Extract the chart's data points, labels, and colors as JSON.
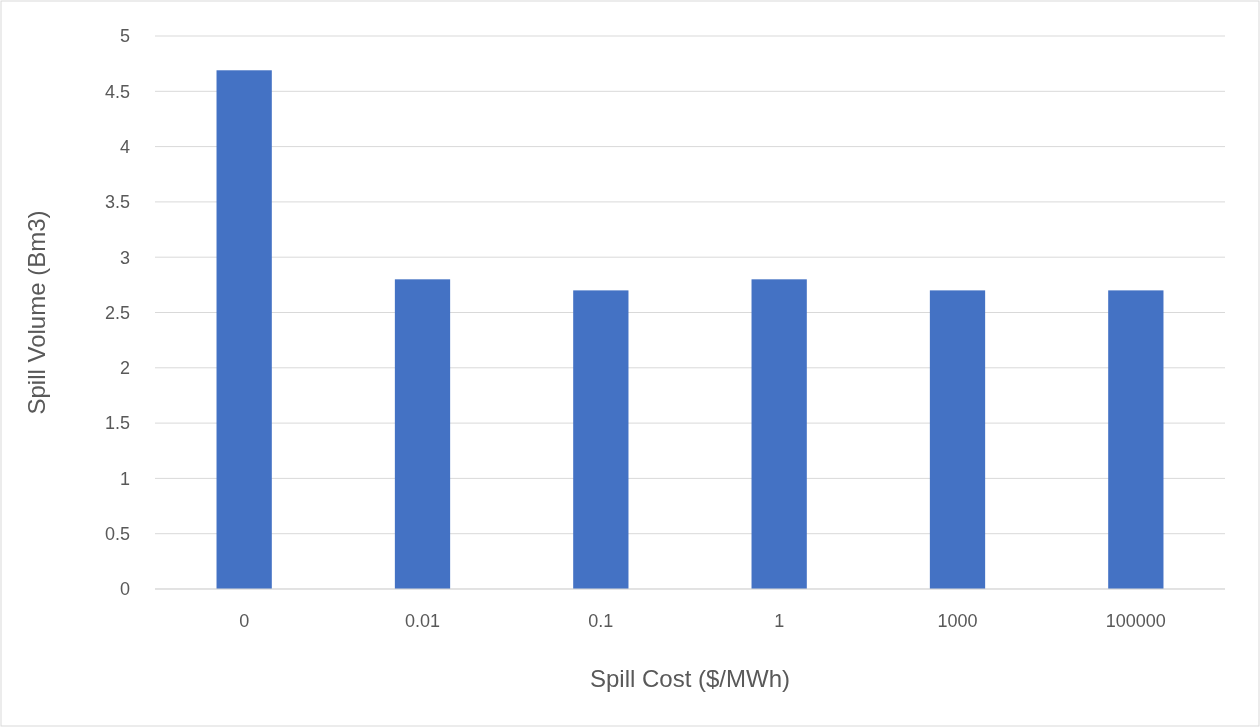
{
  "chart_data": {
    "type": "bar",
    "xlabel": "Spill Cost ($/MWh)",
    "ylabel": "Spill Volume (Bm3)",
    "categories": [
      "0",
      "0.01",
      "0.1",
      "1",
      "1000",
      "100000"
    ],
    "values": [
      4.69,
      2.8,
      2.7,
      2.8,
      2.7,
      2.7
    ],
    "color": "#4472c4",
    "ylim": [
      0,
      5
    ],
    "yticks": [
      0,
      0.5,
      1,
      1.5,
      2,
      2.5,
      3,
      3.5,
      4,
      4.5,
      5
    ],
    "grid": "y"
  }
}
